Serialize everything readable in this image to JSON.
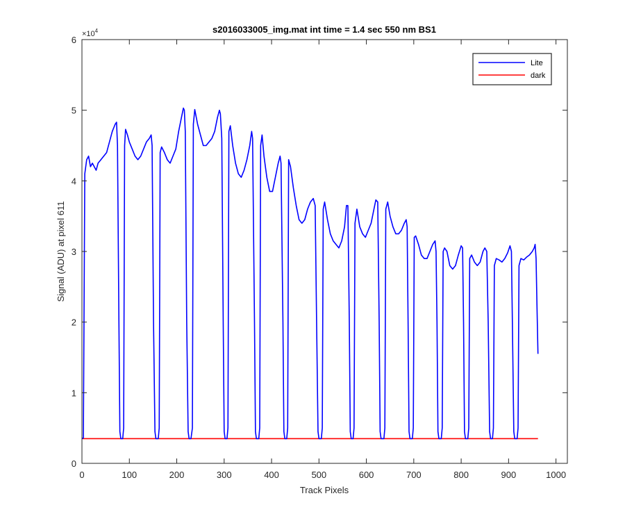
{
  "chart_data": {
    "type": "line",
    "title": "s2016033005_img.mat int time = 1.4 sec  550 nm BS1",
    "xlabel": "Track Pixels",
    "ylabel": "Signal (ADU) at pixel 611",
    "xlim": [
      0,
      1024
    ],
    "ylim": [
      0,
      60000
    ],
    "x_ticks": [
      0,
      100,
      200,
      300,
      400,
      500,
      600,
      700,
      800,
      900,
      1000
    ],
    "y_ticks": [
      0,
      10000,
      20000,
      30000,
      40000,
      50000,
      60000
    ],
    "x_tick_labels": [
      "0",
      "100",
      "200",
      "300",
      "400",
      "500",
      "600",
      "700",
      "800",
      "900",
      "1000"
    ],
    "y_tick_labels": [
      "0",
      "1",
      "2",
      "3",
      "4",
      "5",
      "6"
    ],
    "y_exponent_label": "×10",
    "y_exponent_power": "4",
    "grid": false,
    "legend_position": "top-right",
    "colors": {
      "lite": "#0000ff",
      "dark": "#ff0000",
      "axes": "#262626"
    },
    "series": [
      {
        "name": "Lite",
        "color": "#0000ff",
        "points": [
          [
            0,
            3500
          ],
          [
            3,
            3600
          ],
          [
            6,
            41000
          ],
          [
            10,
            43000
          ],
          [
            14,
            43500
          ],
          [
            18,
            42000
          ],
          [
            22,
            42500
          ],
          [
            26,
            42000
          ],
          [
            30,
            41500
          ],
          [
            34,
            42500
          ],
          [
            40,
            43000
          ],
          [
            46,
            43500
          ],
          [
            52,
            44000
          ],
          [
            58,
            45500
          ],
          [
            64,
            47000
          ],
          [
            70,
            48000
          ],
          [
            73,
            48300
          ],
          [
            75,
            45000
          ],
          [
            78,
            20000
          ],
          [
            80,
            4500
          ],
          [
            82,
            3500
          ],
          [
            86,
            3500
          ],
          [
            88,
            5000
          ],
          [
            90,
            45000
          ],
          [
            92,
            47300
          ],
          [
            96,
            46500
          ],
          [
            100,
            45500
          ],
          [
            106,
            44500
          ],
          [
            112,
            43500
          ],
          [
            118,
            43000
          ],
          [
            124,
            43500
          ],
          [
            130,
            44500
          ],
          [
            136,
            45500
          ],
          [
            142,
            46000
          ],
          [
            146,
            46500
          ],
          [
            148,
            45000
          ],
          [
            151,
            20000
          ],
          [
            154,
            4500
          ],
          [
            156,
            3500
          ],
          [
            161,
            3500
          ],
          [
            163,
            5000
          ],
          [
            165,
            44000
          ],
          [
            168,
            44800
          ],
          [
            174,
            44000
          ],
          [
            180,
            43000
          ],
          [
            186,
            42500
          ],
          [
            192,
            43500
          ],
          [
            198,
            44500
          ],
          [
            204,
            47000
          ],
          [
            210,
            49000
          ],
          [
            214,
            50300
          ],
          [
            216,
            50000
          ],
          [
            218,
            47000
          ],
          [
            221,
            20000
          ],
          [
            224,
            4500
          ],
          [
            226,
            3500
          ],
          [
            230,
            3500
          ],
          [
            233,
            5000
          ],
          [
            235,
            48000
          ],
          [
            238,
            50100
          ],
          [
            244,
            48000
          ],
          [
            250,
            46500
          ],
          [
            256,
            45000
          ],
          [
            262,
            45000
          ],
          [
            268,
            45500
          ],
          [
            274,
            46000
          ],
          [
            280,
            47000
          ],
          [
            286,
            49000
          ],
          [
            290,
            50000
          ],
          [
            292,
            49500
          ],
          [
            295,
            46000
          ],
          [
            298,
            20000
          ],
          [
            300,
            4500
          ],
          [
            302,
            3500
          ],
          [
            306,
            3500
          ],
          [
            308,
            5000
          ],
          [
            310,
            47000
          ],
          [
            313,
            47800
          ],
          [
            318,
            45000
          ],
          [
            324,
            42500
          ],
          [
            330,
            41000
          ],
          [
            336,
            40500
          ],
          [
            342,
            41500
          ],
          [
            348,
            43000
          ],
          [
            354,
            45000
          ],
          [
            358,
            47000
          ],
          [
            360,
            46000
          ],
          [
            364,
            20000
          ],
          [
            366,
            4500
          ],
          [
            368,
            3500
          ],
          [
            373,
            3500
          ],
          [
            375,
            5000
          ],
          [
            377,
            45000
          ],
          [
            380,
            46500
          ],
          [
            384,
            43500
          ],
          [
            390,
            40500
          ],
          [
            396,
            38500
          ],
          [
            402,
            38500
          ],
          [
            408,
            40500
          ],
          [
            414,
            42500
          ],
          [
            418,
            43500
          ],
          [
            420,
            42500
          ],
          [
            424,
            20000
          ],
          [
            426,
            4500
          ],
          [
            428,
            3500
          ],
          [
            432,
            3500
          ],
          [
            434,
            5000
          ],
          [
            436,
            43000
          ],
          [
            440,
            42000
          ],
          [
            446,
            39000
          ],
          [
            452,
            36500
          ],
          [
            458,
            34500
          ],
          [
            464,
            34000
          ],
          [
            470,
            34500
          ],
          [
            476,
            36000
          ],
          [
            482,
            37000
          ],
          [
            488,
            37500
          ],
          [
            492,
            36500
          ],
          [
            495,
            20000
          ],
          [
            498,
            4500
          ],
          [
            500,
            3500
          ],
          [
            505,
            3500
          ],
          [
            507,
            5000
          ],
          [
            509,
            36000
          ],
          [
            512,
            37000
          ],
          [
            518,
            34500
          ],
          [
            524,
            32500
          ],
          [
            530,
            31500
          ],
          [
            536,
            31000
          ],
          [
            542,
            30500
          ],
          [
            548,
            31500
          ],
          [
            554,
            33500
          ],
          [
            558,
            36500
          ],
          [
            561,
            36500
          ],
          [
            564,
            20000
          ],
          [
            566,
            4500
          ],
          [
            568,
            3500
          ],
          [
            572,
            3500
          ],
          [
            574,
            5000
          ],
          [
            576,
            34000
          ],
          [
            580,
            36000
          ],
          [
            586,
            33500
          ],
          [
            592,
            32500
          ],
          [
            598,
            32000
          ],
          [
            604,
            33000
          ],
          [
            610,
            34000
          ],
          [
            616,
            36000
          ],
          [
            620,
            37300
          ],
          [
            624,
            37000
          ],
          [
            627,
            20000
          ],
          [
            629,
            4500
          ],
          [
            631,
            3500
          ],
          [
            637,
            3500
          ],
          [
            639,
            5000
          ],
          [
            641,
            36000
          ],
          [
            645,
            37000
          ],
          [
            650,
            35000
          ],
          [
            656,
            33500
          ],
          [
            662,
            32500
          ],
          [
            668,
            32500
          ],
          [
            674,
            33000
          ],
          [
            680,
            34000
          ],
          [
            684,
            34500
          ],
          [
            686,
            33500
          ],
          [
            688,
            20000
          ],
          [
            690,
            4500
          ],
          [
            692,
            3500
          ],
          [
            697,
            3500
          ],
          [
            699,
            5000
          ],
          [
            701,
            32000
          ],
          [
            704,
            32200
          ],
          [
            710,
            31000
          ],
          [
            716,
            29500
          ],
          [
            722,
            29000
          ],
          [
            728,
            29000
          ],
          [
            734,
            30000
          ],
          [
            740,
            31000
          ],
          [
            745,
            31500
          ],
          [
            747,
            30000
          ],
          [
            749,
            20000
          ],
          [
            751,
            4500
          ],
          [
            753,
            3500
          ],
          [
            758,
            3500
          ],
          [
            760,
            5000
          ],
          [
            762,
            30000
          ],
          [
            765,
            30500
          ],
          [
            770,
            30000
          ],
          [
            776,
            28000
          ],
          [
            782,
            27500
          ],
          [
            788,
            28000
          ],
          [
            794,
            29500
          ],
          [
            800,
            30800
          ],
          [
            803,
            30500
          ],
          [
            805,
            20000
          ],
          [
            807,
            4500
          ],
          [
            809,
            3500
          ],
          [
            814,
            3500
          ],
          [
            816,
            5000
          ],
          [
            818,
            29000
          ],
          [
            822,
            29500
          ],
          [
            828,
            28500
          ],
          [
            834,
            28000
          ],
          [
            840,
            28500
          ],
          [
            846,
            30000
          ],
          [
            850,
            30500
          ],
          [
            854,
            30000
          ],
          [
            857,
            20000
          ],
          [
            860,
            4500
          ],
          [
            862,
            3500
          ],
          [
            866,
            3500
          ],
          [
            868,
            5000
          ],
          [
            870,
            28000
          ],
          [
            874,
            29000
          ],
          [
            880,
            28800
          ],
          [
            886,
            28500
          ],
          [
            892,
            29000
          ],
          [
            898,
            29800
          ],
          [
            903,
            30800
          ],
          [
            906,
            30000
          ],
          [
            908,
            20000
          ],
          [
            911,
            4500
          ],
          [
            913,
            3500
          ],
          [
            918,
            3500
          ],
          [
            920,
            5000
          ],
          [
            922,
            28000
          ],
          [
            926,
            29000
          ],
          [
            932,
            28800
          ],
          [
            938,
            29200
          ],
          [
            944,
            29500
          ],
          [
            950,
            30000
          ],
          [
            954,
            30500
          ],
          [
            956,
            31000
          ],
          [
            958,
            29000
          ],
          [
            960,
            22000
          ],
          [
            962,
            15500
          ]
        ]
      },
      {
        "name": "dark",
        "color": "#ff0000",
        "points": [
          [
            0,
            3500
          ],
          [
            962,
            3500
          ]
        ]
      }
    ]
  }
}
